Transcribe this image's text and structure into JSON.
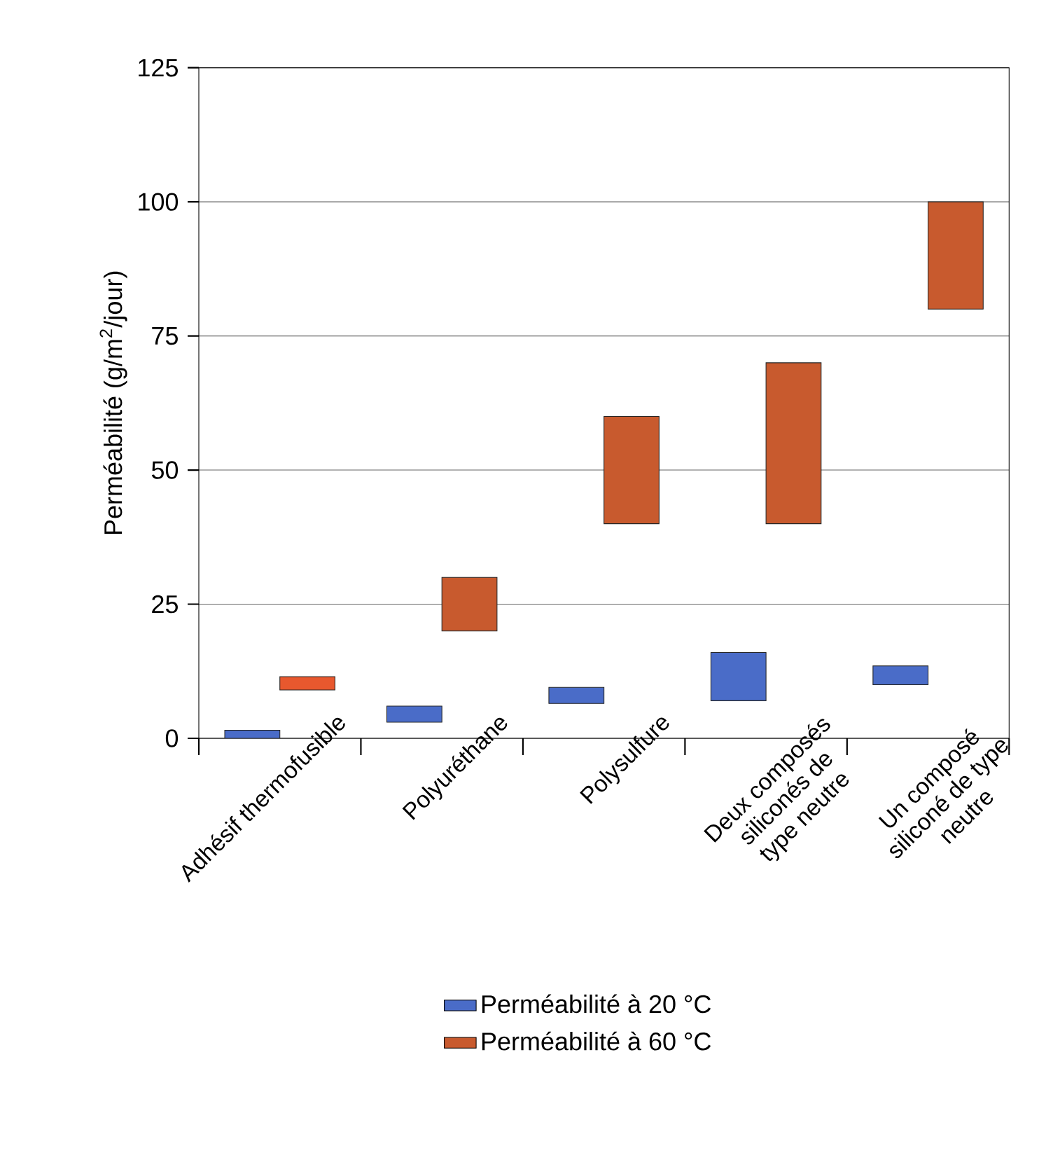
{
  "chart_data": {
    "type": "bar",
    "ylabel": "Perméabilité (g/m$^{2}$/jour)",
    "categories": [
      "Adhésif thermofusible",
      "Polyuréthane",
      "Polysulfure",
      "Deux composés siliconés de type neutre",
      "Un composé siliconé de type neutre"
    ],
    "series": [
      {
        "name": "Perméabilité à 20 °C",
        "color": "#4a6cc8",
        "base": [
          0,
          3,
          6.5,
          7,
          10
        ],
        "values": [
          1.5,
          3,
          3,
          9,
          3.5
        ]
      },
      {
        "name": "Perméabilité à 60 °C",
        "color": "#c85a2e",
        "colors": [
          "#e8582e",
          "#c85a2e",
          "#c85a2e",
          "#c85a2e",
          "#c85a2e"
        ],
        "base": [
          9,
          20,
          40,
          40,
          80
        ],
        "values": [
          2.5,
          10,
          20,
          30,
          20
        ]
      }
    ],
    "ylim": [
      0,
      125
    ],
    "yticks": [
      0,
      25,
      50,
      75,
      100,
      125
    ],
    "grid": "y",
    "legend": "bottom"
  }
}
